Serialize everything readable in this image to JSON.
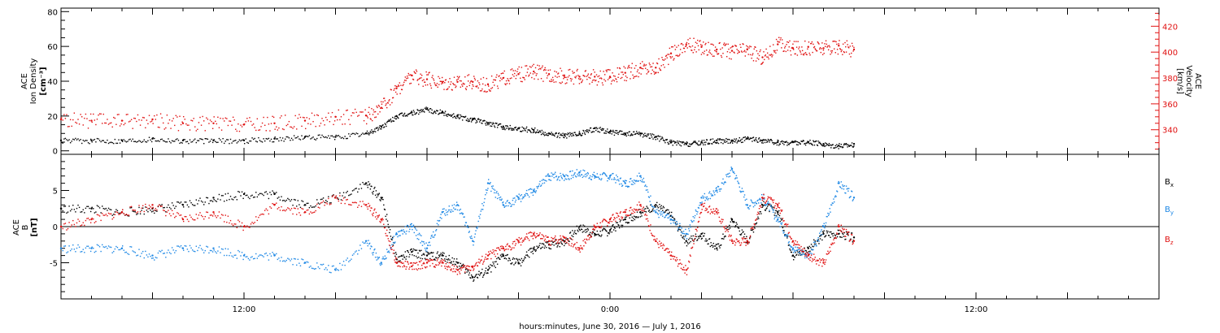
{
  "xlabel": "hours:minutes, June 30, 2016 — July  1, 2016",
  "chart_data": [
    {
      "type": "scatter",
      "panel": "top",
      "x_unit": "hours since 2016-06-30 00:00 UTC",
      "xlim": [
        6,
        42
      ],
      "x_ticks": [
        {
          "x": 12,
          "label": "12:00"
        },
        {
          "x": 24,
          "label": "0:00"
        },
        {
          "x": 36,
          "label": "12:00"
        }
      ],
      "ylabel_lines": [
        "ACE",
        "Ion Density",
        "[cm⁻³]"
      ],
      "ylim": [
        -2,
        82
      ],
      "y_ticks": [
        "0",
        "20",
        "40",
        "60",
        "80"
      ],
      "y2label_lines": [
        "ACE",
        "Velocity",
        "[km/s]"
      ],
      "y2lim": [
        321,
        434
      ],
      "y2_ticks": [
        "340",
        "360",
        "380",
        "400",
        "420"
      ],
      "series": [
        {
          "name": "Ion Density",
          "axis": "left",
          "color": "#000000",
          "x": [
            6.0,
            7.0,
            8.0,
            9.0,
            10.0,
            11.0,
            12.0,
            13.0,
            14.0,
            15.0,
            16.0,
            16.5,
            17.0,
            17.5,
            18.0,
            18.5,
            19.0,
            19.5,
            20.0,
            20.5,
            21.0,
            21.5,
            22.0,
            22.5,
            23.0,
            23.5,
            24.0,
            24.5,
            25.0,
            25.5,
            26.0,
            26.5,
            27.0,
            27.5,
            28.0,
            28.5,
            29.0,
            29.5,
            30.0,
            30.5,
            31.0,
            31.5,
            32.0
          ],
          "y": [
            6,
            6,
            6,
            7,
            6,
            6,
            6,
            7,
            8,
            8,
            10,
            14,
            20,
            22,
            24,
            22,
            20,
            18,
            16,
            14,
            13,
            12,
            10,
            9,
            10,
            13,
            11,
            10,
            10,
            8,
            5,
            4,
            5,
            6,
            6,
            7,
            6,
            5,
            5,
            5,
            4,
            3,
            4
          ]
        },
        {
          "name": "Velocity",
          "axis": "right",
          "color": "#e01010",
          "x": [
            6.0,
            7.0,
            8.0,
            9.0,
            10.0,
            11.0,
            12.0,
            13.0,
            14.0,
            15.0,
            16.0,
            16.5,
            17.0,
            17.5,
            18.0,
            18.5,
            19.0,
            19.5,
            20.0,
            20.5,
            21.0,
            21.5,
            22.0,
            22.5,
            23.0,
            23.5,
            24.0,
            24.5,
            25.0,
            25.5,
            26.0,
            26.5,
            27.0,
            27.5,
            28.0,
            28.5,
            29.0,
            29.5,
            30.0,
            30.5,
            31.0,
            31.5,
            32.0
          ],
          "y": [
            348,
            347,
            347,
            348,
            345,
            345,
            344,
            345,
            347,
            350,
            351,
            357,
            372,
            382,
            379,
            377,
            377,
            377,
            375,
            380,
            383,
            385,
            383,
            382,
            381,
            381,
            381,
            384,
            388,
            388,
            399,
            406,
            404,
            402,
            401,
            402,
            396,
            406,
            403,
            404,
            403,
            405,
            402
          ]
        }
      ]
    },
    {
      "type": "scatter",
      "panel": "bottom",
      "x_unit": "hours since 2016-06-30 00:00 UTC",
      "xlim": [
        6,
        42
      ],
      "ylabel_lines": [
        "ACE",
        "B",
        "[nT]"
      ],
      "ylim": [
        -10,
        10
      ],
      "y_ticks": [
        "-5",
        "0",
        "5"
      ],
      "zero_line": true,
      "legend_position": "right",
      "series": [
        {
          "name": "Bx",
          "color": "#000000",
          "x": [
            6.0,
            7.0,
            8.0,
            9.0,
            10.0,
            11.0,
            12.0,
            13.0,
            14.0,
            15.0,
            16.0,
            16.5,
            17.0,
            17.5,
            18.0,
            18.5,
            19.0,
            19.5,
            20.0,
            20.5,
            21.0,
            21.5,
            22.0,
            22.5,
            23.0,
            23.5,
            24.0,
            24.5,
            25.0,
            25.5,
            26.0,
            26.5,
            27.0,
            27.5,
            28.0,
            28.5,
            29.0,
            29.5,
            30.0,
            30.5,
            31.0,
            31.5,
            32.0
          ],
          "y": [
            2.5,
            2.5,
            2.0,
            2.5,
            3.0,
            4.0,
            4.5,
            4.5,
            3.0,
            4.0,
            6.0,
            4.0,
            -4.5,
            -3.5,
            -4.0,
            -4.0,
            -5.0,
            -7.0,
            -6.0,
            -4.0,
            -5.0,
            -3.0,
            -2.5,
            -2.0,
            0.0,
            -1.0,
            -0.5,
            1.0,
            2.0,
            3.0,
            1.5,
            -2.0,
            -1.0,
            -3.0,
            1.0,
            -2.0,
            3.0,
            2.0,
            -4.0,
            -3.0,
            -1.0,
            -1.0,
            -1.5
          ]
        },
        {
          "name": "By",
          "color": "#1e88e5",
          "x": [
            6.0,
            7.0,
            8.0,
            9.0,
            10.0,
            11.0,
            12.0,
            13.0,
            14.0,
            15.0,
            16.0,
            16.5,
            17.0,
            17.5,
            18.0,
            18.5,
            19.0,
            19.5,
            20.0,
            20.5,
            21.0,
            21.5,
            22.0,
            22.5,
            23.0,
            23.5,
            24.0,
            24.5,
            25.0,
            25.5,
            26.0,
            26.5,
            27.0,
            27.5,
            28.0,
            28.5,
            29.0,
            29.5,
            30.0,
            30.5,
            31.0,
            31.5,
            32.0
          ],
          "y": [
            -3.0,
            -3.0,
            -3.0,
            -4.0,
            -3.0,
            -3.0,
            -4.0,
            -4.0,
            -5.0,
            -6.0,
            -2.0,
            -5.0,
            -1.0,
            0.0,
            -3.0,
            2.0,
            3.0,
            -2.0,
            6.0,
            3.0,
            4.0,
            5.0,
            7.0,
            7.0,
            7.5,
            7.0,
            7.0,
            6.0,
            7.0,
            2.0,
            1.0,
            -1.0,
            4.0,
            5.0,
            8.0,
            3.0,
            4.0,
            1.0,
            -3.0,
            -4.0,
            0.0,
            6.0,
            4.0
          ]
        },
        {
          "name": "Bz",
          "color": "#e01010",
          "x": [
            6.0,
            7.0,
            8.0,
            9.0,
            10.0,
            11.0,
            12.0,
            13.0,
            14.0,
            15.0,
            16.0,
            16.5,
            17.0,
            17.5,
            18.0,
            18.5,
            19.0,
            19.5,
            20.0,
            20.5,
            21.0,
            21.5,
            22.0,
            22.5,
            23.0,
            23.5,
            24.0,
            24.5,
            25.0,
            25.5,
            26.0,
            26.5,
            27.0,
            27.5,
            28.0,
            28.5,
            29.0,
            29.5,
            30.0,
            30.5,
            31.0,
            31.5,
            32.0
          ],
          "y": [
            0.0,
            1.0,
            2.0,
            3.0,
            1.0,
            2.0,
            0.0,
            3.0,
            2.0,
            4.0,
            3.0,
            1.0,
            -5.0,
            -5.5,
            -5.0,
            -5.0,
            -6.0,
            -5.5,
            -4.0,
            -3.0,
            -2.0,
            -1.0,
            -2.0,
            -1.5,
            -3.0,
            0.0,
            1.0,
            2.0,
            3.0,
            -2.0,
            -4.0,
            -6.0,
            3.0,
            2.0,
            -2.0,
            -2.0,
            4.0,
            3.0,
            -2.0,
            -4.0,
            -5.0,
            0.0,
            -2.0
          ]
        }
      ]
    }
  ]
}
